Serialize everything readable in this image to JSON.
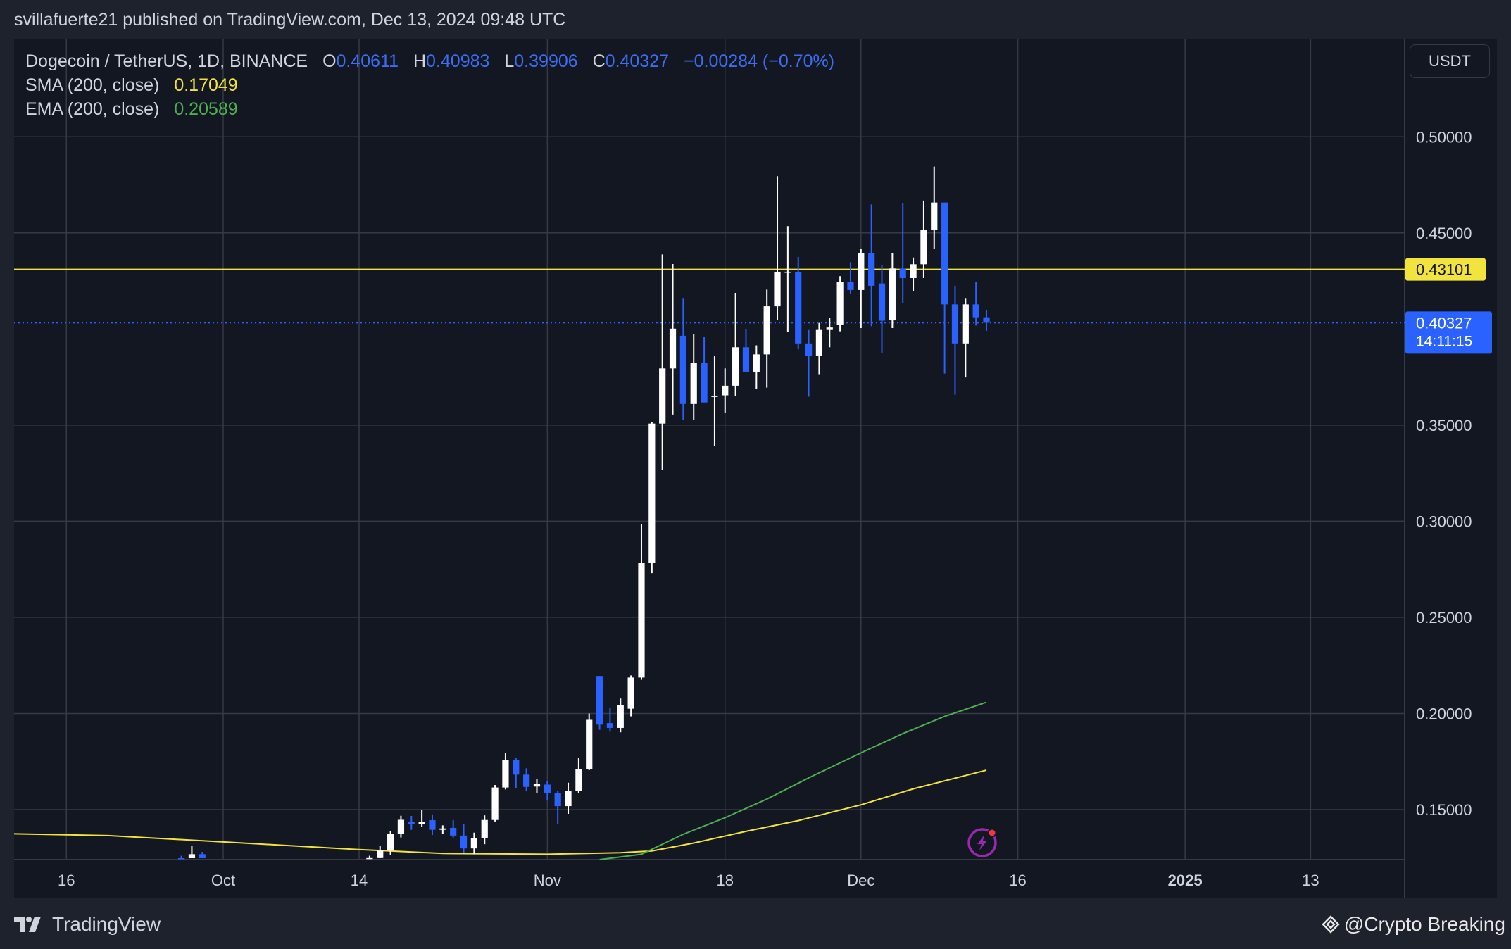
{
  "header": {
    "text": "svillafuerte21 published on TradingView.com, Dec 13, 2024 09:48 UTC"
  },
  "legend": {
    "symbol": "Dogecoin / TetherUS, 1D, BINANCE",
    "open_label": "O",
    "open": "0.40611",
    "high_label": "H",
    "high": "0.40983",
    "low_label": "L",
    "low": "0.39906",
    "close_label": "C",
    "close": "0.40327",
    "change": "−0.00284 (−0.70%)",
    "sma_label": "SMA (200, close)",
    "sma_value": "0.17049",
    "ema_label": "EMA (200, close)",
    "ema_value": "0.20589"
  },
  "currency": "USDT",
  "footer": {
    "brand": "TradingView",
    "credit": "@Crypto Breaking"
  },
  "colors": {
    "background": "#131722",
    "frame": "#1e222d",
    "grid": "#363a45",
    "up": "#ffffff",
    "down": "#2962ff",
    "sma": "#f2e33d",
    "ema": "#4caf50",
    "resistance": "#f2e33d",
    "price_label": "#2962ff",
    "icon_accent": "#9c27b0"
  },
  "chart_data": {
    "type": "candlestick",
    "title": "Dogecoin / TetherUS, 1D, BINANCE",
    "y_ticks": [
      "0.50000",
      "0.45000",
      "0.35000",
      "0.30000",
      "0.25000",
      "0.20000",
      "0.15000"
    ],
    "y_tick_values": [
      0.5,
      0.45,
      0.35,
      0.3,
      0.25,
      0.2,
      0.15
    ],
    "ylim": [
      0.124,
      0.551
    ],
    "x_ticks": [
      "16",
      "Oct",
      "14",
      "Nov",
      "18",
      "Dec",
      "16",
      "2025",
      "13"
    ],
    "x_tick_dates": [
      "2024-09-16",
      "2024-10-01",
      "2024-10-14",
      "2024-11-01",
      "2024-11-18",
      "2024-12-01",
      "2024-12-16",
      "2025-01-01",
      "2025-01-13"
    ],
    "date_range": [
      "2024-09-11",
      "2025-01-22"
    ],
    "bold_ticks": [
      "2025"
    ],
    "grid": true,
    "resistance": {
      "value": 0.43101,
      "label": "0.43101"
    },
    "last_price": {
      "value": 0.40327,
      "label": "0.40327",
      "countdown": "14:11:15"
    },
    "ohlc": [
      {
        "date": "2024-09-27",
        "o": 0.1228,
        "h": 0.126,
        "l": 0.1215,
        "c": 0.1225
      },
      {
        "date": "2024-09-28",
        "o": 0.1225,
        "h": 0.131,
        "l": 0.1205,
        "c": 0.1268
      },
      {
        "date": "2024-09-29",
        "o": 0.1268,
        "h": 0.128,
        "l": 0.1215,
        "c": 0.1238
      },
      {
        "date": "2024-10-15",
        "o": 0.12,
        "h": 0.126,
        "l": 0.1185,
        "c": 0.1248
      },
      {
        "date": "2024-10-16",
        "o": 0.1248,
        "h": 0.131,
        "l": 0.122,
        "c": 0.1287
      },
      {
        "date": "2024-10-17",
        "o": 0.1287,
        "h": 0.139,
        "l": 0.1265,
        "c": 0.1375
      },
      {
        "date": "2024-10-18",
        "o": 0.1375,
        "h": 0.1468,
        "l": 0.1355,
        "c": 0.1447
      },
      {
        "date": "2024-10-19",
        "o": 0.1437,
        "h": 0.1467,
        "l": 0.1395,
        "c": 0.1425
      },
      {
        "date": "2024-10-20",
        "o": 0.1425,
        "h": 0.1498,
        "l": 0.141,
        "c": 0.1435
      },
      {
        "date": "2024-10-21",
        "o": 0.1445,
        "h": 0.1475,
        "l": 0.1368,
        "c": 0.1395
      },
      {
        "date": "2024-10-22",
        "o": 0.1395,
        "h": 0.1418,
        "l": 0.1375,
        "c": 0.1402
      },
      {
        "date": "2024-10-23",
        "o": 0.1405,
        "h": 0.1445,
        "l": 0.1355,
        "c": 0.1365
      },
      {
        "date": "2024-10-24",
        "o": 0.1365,
        "h": 0.1425,
        "l": 0.1275,
        "c": 0.1298
      },
      {
        "date": "2024-10-25",
        "o": 0.1298,
        "h": 0.138,
        "l": 0.1268,
        "c": 0.1352
      },
      {
        "date": "2024-10-26",
        "o": 0.1352,
        "h": 0.147,
        "l": 0.132,
        "c": 0.1446
      },
      {
        "date": "2024-10-27",
        "o": 0.1446,
        "h": 0.1628,
        "l": 0.1438,
        "c": 0.1615
      },
      {
        "date": "2024-10-28",
        "o": 0.1615,
        "h": 0.1795,
        "l": 0.1605,
        "c": 0.1757
      },
      {
        "date": "2024-10-29",
        "o": 0.1757,
        "h": 0.1768,
        "l": 0.1612,
        "c": 0.1682
      },
      {
        "date": "2024-10-30",
        "o": 0.1682,
        "h": 0.1715,
        "l": 0.1595,
        "c": 0.1618
      },
      {
        "date": "2024-10-31",
        "o": 0.162,
        "h": 0.1658,
        "l": 0.1588,
        "c": 0.1635
      },
      {
        "date": "2024-11-01",
        "o": 0.163,
        "h": 0.1648,
        "l": 0.1547,
        "c": 0.1587
      },
      {
        "date": "2024-11-02",
        "o": 0.1587,
        "h": 0.1598,
        "l": 0.1425,
        "c": 0.1518
      },
      {
        "date": "2024-11-03",
        "o": 0.1518,
        "h": 0.164,
        "l": 0.1478,
        "c": 0.1597
      },
      {
        "date": "2024-11-04",
        "o": 0.1597,
        "h": 0.177,
        "l": 0.1585,
        "c": 0.1712
      },
      {
        "date": "2024-11-05",
        "o": 0.1712,
        "h": 0.2,
        "l": 0.1705,
        "c": 0.1967
      },
      {
        "date": "2024-11-06",
        "o": 0.2195,
        "h": 0.2195,
        "l": 0.1915,
        "c": 0.1942
      },
      {
        "date": "2024-11-07",
        "o": 0.195,
        "h": 0.203,
        "l": 0.1905,
        "c": 0.1925
      },
      {
        "date": "2024-11-08",
        "o": 0.1925,
        "h": 0.2078,
        "l": 0.1902,
        "c": 0.2045
      },
      {
        "date": "2024-11-09",
        "o": 0.2025,
        "h": 0.2198,
        "l": 0.1985,
        "c": 0.2187
      },
      {
        "date": "2024-11-10",
        "o": 0.2187,
        "h": 0.2985,
        "l": 0.2175,
        "c": 0.2782
      },
      {
        "date": "2024-11-11",
        "o": 0.2782,
        "h": 0.3515,
        "l": 0.273,
        "c": 0.3508
      },
      {
        "date": "2024-11-12",
        "o": 0.3508,
        "h": 0.4388,
        "l": 0.3265,
        "c": 0.3795
      },
      {
        "date": "2024-11-13",
        "o": 0.3795,
        "h": 0.4338,
        "l": 0.3555,
        "c": 0.4002
      },
      {
        "date": "2024-11-14",
        "o": 0.3965,
        "h": 0.4158,
        "l": 0.3525,
        "c": 0.361
      },
      {
        "date": "2024-11-15",
        "o": 0.361,
        "h": 0.3975,
        "l": 0.3525,
        "c": 0.3825
      },
      {
        "date": "2024-11-16",
        "o": 0.3825,
        "h": 0.3958,
        "l": 0.3618,
        "c": 0.3618
      },
      {
        "date": "2024-11-17",
        "o": 0.3652,
        "h": 0.3858,
        "l": 0.339,
        "c": 0.3652
      },
      {
        "date": "2024-11-18",
        "o": 0.3655,
        "h": 0.3795,
        "l": 0.3565,
        "c": 0.3705
      },
      {
        "date": "2024-11-19",
        "o": 0.3705,
        "h": 0.4188,
        "l": 0.3652,
        "c": 0.3905
      },
      {
        "date": "2024-11-20",
        "o": 0.3905,
        "h": 0.3998,
        "l": 0.3792,
        "c": 0.3778
      },
      {
        "date": "2024-11-21",
        "o": 0.3778,
        "h": 0.3915,
        "l": 0.3688,
        "c": 0.3868
      },
      {
        "date": "2024-11-22",
        "o": 0.3868,
        "h": 0.4205,
        "l": 0.3695,
        "c": 0.4118
      },
      {
        "date": "2024-11-23",
        "o": 0.4118,
        "h": 0.4795,
        "l": 0.4045,
        "c": 0.4298
      },
      {
        "date": "2024-11-24",
        "o": 0.4298,
        "h": 0.4535,
        "l": 0.3985,
        "c": 0.4298
      },
      {
        "date": "2024-11-25",
        "o": 0.4298,
        "h": 0.4375,
        "l": 0.3895,
        "c": 0.3925
      },
      {
        "date": "2024-11-26",
        "o": 0.3925,
        "h": 0.3995,
        "l": 0.3648,
        "c": 0.3862
      },
      {
        "date": "2024-11-27",
        "o": 0.3862,
        "h": 0.4032,
        "l": 0.3765,
        "c": 0.3995
      },
      {
        "date": "2024-11-28",
        "o": 0.3995,
        "h": 0.4058,
        "l": 0.3905,
        "c": 0.4008
      },
      {
        "date": "2024-11-29",
        "o": 0.4022,
        "h": 0.4275,
        "l": 0.3988,
        "c": 0.4245
      },
      {
        "date": "2024-11-30",
        "o": 0.4245,
        "h": 0.4348,
        "l": 0.4185,
        "c": 0.4203
      },
      {
        "date": "2024-12-01",
        "o": 0.4203,
        "h": 0.4418,
        "l": 0.4005,
        "c": 0.4395
      },
      {
        "date": "2024-12-02",
        "o": 0.4395,
        "h": 0.4648,
        "l": 0.4015,
        "c": 0.4225
      },
      {
        "date": "2024-12-03",
        "o": 0.4237,
        "h": 0.4335,
        "l": 0.3875,
        "c": 0.4043
      },
      {
        "date": "2024-12-04",
        "o": 0.4045,
        "h": 0.4395,
        "l": 0.4005,
        "c": 0.4315
      },
      {
        "date": "2024-12-05",
        "o": 0.4315,
        "h": 0.4655,
        "l": 0.4135,
        "c": 0.4265
      },
      {
        "date": "2024-12-06",
        "o": 0.4265,
        "h": 0.4372,
        "l": 0.4198,
        "c": 0.4337
      },
      {
        "date": "2024-12-07",
        "o": 0.4337,
        "h": 0.4668,
        "l": 0.4265,
        "c": 0.4515
      },
      {
        "date": "2024-12-08",
        "o": 0.4515,
        "h": 0.4845,
        "l": 0.4415,
        "c": 0.4658
      },
      {
        "date": "2024-12-09",
        "o": 0.4658,
        "h": 0.4658,
        "l": 0.3768,
        "c": 0.4128
      },
      {
        "date": "2024-12-10",
        "o": 0.4128,
        "h": 0.4225,
        "l": 0.3658,
        "c": 0.3925
      },
      {
        "date": "2024-12-11",
        "o": 0.3925,
        "h": 0.4158,
        "l": 0.3748,
        "c": 0.4128
      },
      {
        "date": "2024-12-12",
        "o": 0.4128,
        "h": 0.4245,
        "l": 0.4018,
        "c": 0.4061
      },
      {
        "date": "2024-12-13",
        "o": 0.40611,
        "h": 0.40983,
        "l": 0.39906,
        "c": 0.40327
      }
    ],
    "series": [
      {
        "name": "SMA (200, close)",
        "color": "#f2e33d",
        "points": [
          [
            "2024-09-11",
            0.1374
          ],
          [
            "2024-09-20",
            0.1365
          ],
          [
            "2024-10-01",
            0.1332
          ],
          [
            "2024-10-14",
            0.1292
          ],
          [
            "2024-10-22",
            0.1272
          ],
          [
            "2024-11-01",
            0.1268
          ],
          [
            "2024-11-08",
            0.1276
          ],
          [
            "2024-11-11",
            0.1285
          ],
          [
            "2024-11-15",
            0.1326
          ],
          [
            "2024-11-20",
            0.1387
          ],
          [
            "2024-11-25",
            0.1443
          ],
          [
            "2024-12-01",
            0.1525
          ],
          [
            "2024-12-06",
            0.1608
          ],
          [
            "2024-12-13",
            0.1705
          ]
        ]
      },
      {
        "name": "EMA (200, close)",
        "color": "#4caf50",
        "points": [
          [
            "2024-11-06",
            0.124
          ],
          [
            "2024-11-10",
            0.1268
          ],
          [
            "2024-11-14",
            0.1372
          ],
          [
            "2024-11-18",
            0.1458
          ],
          [
            "2024-11-22",
            0.1555
          ],
          [
            "2024-11-26",
            0.1665
          ],
          [
            "2024-12-01",
            0.1795
          ],
          [
            "2024-12-05",
            0.1895
          ],
          [
            "2024-12-09",
            0.1985
          ],
          [
            "2024-12-13",
            0.2059
          ]
        ]
      }
    ]
  }
}
